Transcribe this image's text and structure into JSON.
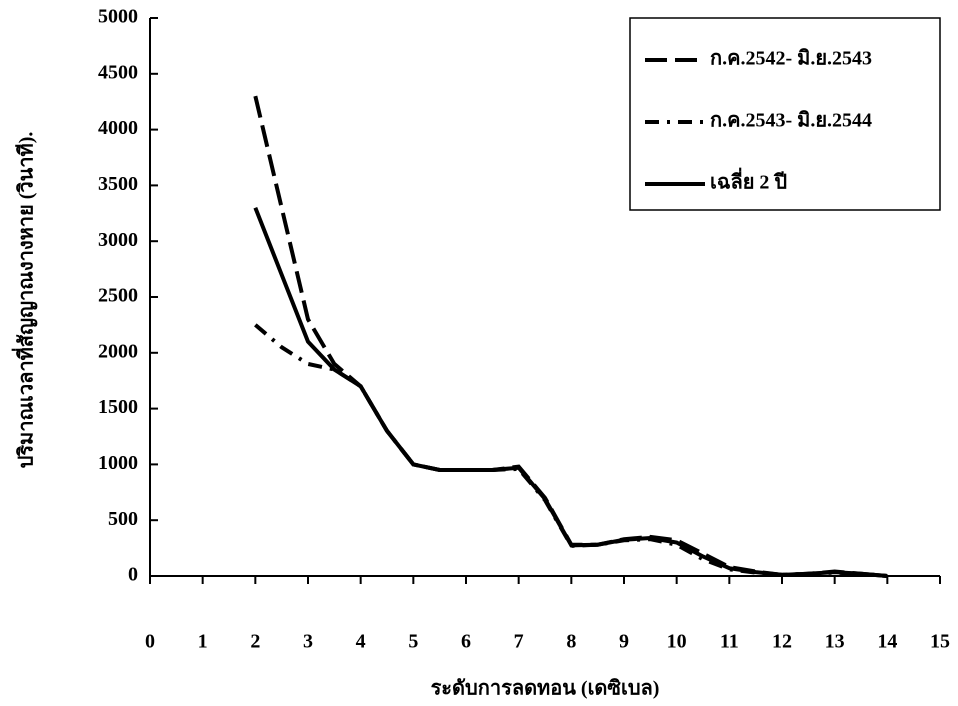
{
  "chart_data": {
    "type": "line",
    "y_label": "ปริมาณเวลาที่สัญญาณงางหาย (วินาที).",
    "x_label": "ระดับการลดทอน (เดซิเบล)",
    "x": [
      2,
      2.5,
      3,
      3.5,
      4,
      4.5,
      5,
      5.5,
      6,
      6.5,
      7,
      7.5,
      8,
      8.5,
      9,
      9.5,
      10,
      10.5,
      11,
      11.5,
      12,
      12.5,
      13,
      13.5,
      14
    ],
    "series": [
      {
        "name": "ก.ค.2542- มิ.ย.2543",
        "color": "#000000",
        "line_style": "dashed",
        "values": [
          4300,
          3300,
          2300,
          1900,
          1700,
          1300,
          1000,
          950,
          950,
          950,
          980,
          700,
          280,
          280,
          330,
          350,
          320,
          200,
          80,
          40,
          10,
          20,
          40,
          20,
          0
        ]
      },
      {
        "name": "ก.ค.2543- มิ.ย.2544",
        "color": "#000000",
        "line_style": "dashdot",
        "values": [
          2250,
          2050,
          1900,
          1850,
          1700,
          1300,
          1000,
          950,
          950,
          950,
          960,
          680,
          270,
          280,
          320,
          330,
          280,
          150,
          60,
          30,
          10,
          20,
          30,
          20,
          0
        ]
      },
      {
        "name": "เฉลี่ย 2 ปี",
        "color": "#000000",
        "line_style": "solid",
        "values": [
          3300,
          2700,
          2100,
          1850,
          1700,
          1300,
          1000,
          950,
          950,
          950,
          970,
          690,
          275,
          280,
          325,
          340,
          300,
          175,
          70,
          35,
          10,
          20,
          35,
          20,
          0
        ]
      }
    ],
    "xlim": [
      0,
      15
    ],
    "xticks": [
      0,
      1,
      2,
      3,
      4,
      5,
      6,
      7,
      8,
      9,
      10,
      11,
      12,
      13,
      14,
      15
    ],
    "ylim": [
      0,
      5000
    ],
    "yticks": [
      0,
      500,
      1000,
      1500,
      2000,
      2500,
      3000,
      3500,
      4000,
      4500,
      5000
    ],
    "legend": "top-right"
  }
}
